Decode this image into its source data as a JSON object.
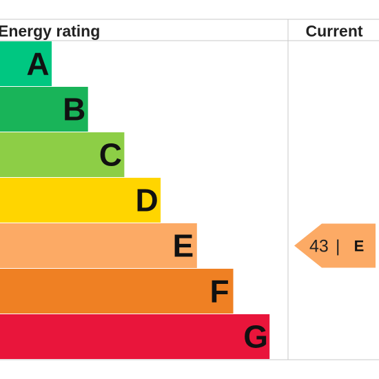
{
  "chart_data": {
    "type": "bar",
    "title": "Energy rating",
    "column_current": "Current",
    "categories": [
      "A",
      "B",
      "C",
      "D",
      "E",
      "F",
      "G"
    ],
    "colors": [
      "#00c781",
      "#19b459",
      "#8dce46",
      "#ffd500",
      "#fcaa65",
      "#ef8023",
      "#e9153b"
    ],
    "current": {
      "score": 43,
      "separator": "|",
      "band": "E",
      "color": "#fcaa65"
    }
  }
}
